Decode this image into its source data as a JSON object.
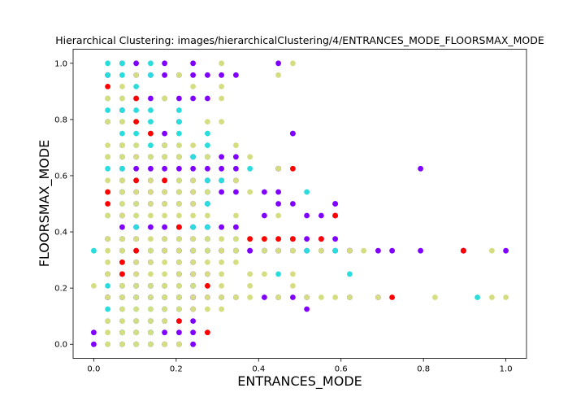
{
  "chart_data": {
    "type": "scatter",
    "title": "Hierarchical Clustering: images/hierarchicalClustering/4/ENTRANCES_MODE_FLOORSMAX_MODE",
    "xlabel": "ENTRANCES_MODE",
    "ylabel": "FLOORSMAX_MODE",
    "xlim": [
      -0.05,
      1.05
    ],
    "ylim": [
      -0.05,
      1.05
    ],
    "xticks": [
      "0.0",
      "0.2",
      "0.4",
      "0.6",
      "0.8",
      "1.0"
    ],
    "yticks": [
      "0.0",
      "0.2",
      "0.4",
      "0.6",
      "0.8",
      "1.0"
    ],
    "grid": false,
    "colors": {
      "purple": "#8000ff",
      "cyan": "#2adddd",
      "khaki": "#d4dd80",
      "red": "#ff0000"
    },
    "series": [
      {
        "color": "purple",
        "x": [
          0,
          0,
          0.069,
          0.103,
          0.138,
          0.172,
          0.207,
          0.241,
          0.241,
          0.276,
          0.31,
          0.345,
          0.379,
          0.414,
          0.448,
          0.483,
          0.517,
          0.552,
          0.586,
          0.621,
          0.69,
          0.724,
          0.793,
          0.897,
          0.897,
          1.0,
          0.172,
          0.207,
          0.241,
          0.276,
          0.31,
          0.345,
          0.379,
          0.414,
          0.448,
          0.483,
          0.517,
          0.552,
          0.586,
          0.621,
          0.069,
          0.103,
          0.138,
          0.172,
          0.207,
          0.241,
          0.276,
          0.31,
          0.345,
          0.414,
          0.448,
          0.483,
          0.517,
          0.552,
          0.586,
          0.414,
          0.448,
          0.586,
          0.448,
          0.483,
          0.586,
          0.069,
          0.103,
          0.138,
          0.172,
          0.207,
          0.241,
          0.276,
          0.069,
          0.103,
          0.138,
          0.172,
          0.207,
          0.241,
          0.276,
          0.31,
          0.345,
          0.069,
          0.103,
          0.138,
          0.172,
          0.207,
          0.241,
          0.276,
          0.31,
          0.345,
          0.069,
          0.103,
          0.138,
          0.172,
          0.207,
          0.241,
          0.276,
          0.31,
          0.345,
          0.448,
          0.793,
          0.069,
          0.103,
          0.138,
          0.172,
          0.207,
          0.241,
          0.276,
          0.31,
          0.345,
          0.172,
          0.483,
          0.069,
          0.172,
          0.034,
          0.207,
          0.069,
          0.103,
          0.138,
          0.172,
          0.207,
          0.241,
          0.276,
          0.034,
          0.448,
          0.069,
          0.103,
          0.172,
          0.241,
          0.069,
          0.103,
          0.138,
          0.207,
          0.241,
          0.069,
          0.103,
          0.207,
          0.241,
          0.069,
          0.103,
          0.172,
          0.207,
          0.241,
          0.207,
          0.241,
          0.172,
          0.207,
          0.241,
          0.517,
          0.034,
          0.069,
          0.103,
          0.138,
          0.172,
          0.207,
          0.241,
          0.276,
          0.103,
          0.138,
          0.172,
          0.207,
          0.241,
          0.069,
          0.103,
          0.138,
          0.172,
          0.207,
          0.241,
          0.069,
          0.103,
          0.138,
          0.172,
          0.207,
          0.241,
          0.103,
          0.138,
          0.207,
          0.241,
          0.276,
          0.034,
          0.069,
          0.138,
          0.241,
          0.034,
          0.069,
          0.103,
          0.172,
          0.207,
          0.241,
          0.276,
          0.034,
          0.103,
          0.138,
          0.172,
          0.207,
          0.241,
          0.276,
          0.31,
          0.345,
          0.034,
          0.069,
          0.103,
          0.138,
          0.172,
          0.207,
          0.241,
          0.31,
          0.345,
          0.414,
          0.448,
          0.483,
          0.517,
          0.621,
          0.69
        ],
        "y": [
          0.042,
          0,
          0.333,
          0.333,
          0.333,
          0.333,
          0.333,
          0.333,
          0.333,
          0.333,
          0.333,
          0.333,
          0.333,
          0.333,
          0.333,
          0.333,
          0.333,
          0.333,
          0.333,
          0.333,
          0.333,
          0.333,
          0.333,
          0.333,
          0.333,
          0.333,
          0.333,
          0.333,
          0.333,
          0.333,
          0.333,
          0.333,
          0.333,
          0.333,
          0.333,
          0.375,
          0.375,
          0.375,
          0.375,
          0.333,
          0.417,
          0.417,
          0.417,
          0.417,
          0.417,
          0.417,
          0.417,
          0.417,
          0.417,
          0.458,
          0.5,
          0.5,
          0.458,
          0.458,
          0.5,
          0.542,
          0.542,
          0.5,
          0.625,
          0.75,
          0.458,
          0.458,
          0.5,
          0.5,
          0.5,
          0.5,
          0.5,
          0.5,
          0.542,
          0.542,
          0.542,
          0.542,
          0.542,
          0.542,
          0.542,
          0.542,
          0.542,
          0.583,
          0.583,
          0.583,
          0.583,
          0.583,
          0.583,
          0.583,
          0.583,
          0.583,
          0.625,
          0.625,
          0.625,
          0.625,
          0.625,
          0.625,
          0.625,
          0.625,
          0.625,
          0.625,
          0.625,
          0.667,
          0.667,
          0.667,
          0.667,
          0.667,
          0.667,
          0.667,
          0.667,
          0.667,
          0.75,
          0.75,
          0.708,
          0.708,
          0.792,
          0.792,
          0.833,
          0.875,
          0.875,
          0.875,
          0.875,
          0.875,
          0.875,
          0.958,
          1.0,
          1.0,
          1.0,
          1.0,
          1.0,
          0.292,
          0.292,
          0.292,
          0.292,
          0.292,
          0.25,
          0.25,
          0.25,
          0.25,
          0.208,
          0.208,
          0.208,
          0.208,
          0.208,
          0.167,
          0.167,
          0.125,
          0.125,
          0.125,
          0.125,
          0.167,
          0.167,
          0.167,
          0.167,
          0.167,
          0.167,
          0.167,
          0.167,
          0.083,
          0.083,
          0.083,
          0.083,
          0.083,
          0.042,
          0.042,
          0.042,
          0.042,
          0.042,
          0.042,
          0,
          0,
          0,
          0,
          0,
          0,
          0.208,
          0.208,
          0.25,
          0.25,
          0.25,
          0.25,
          0.25,
          0.208,
          0.208,
          0.375,
          0.375,
          0.375,
          0.375,
          0.375,
          0.375,
          0.375,
          0.958,
          0.958,
          0.958,
          0.958,
          0.958,
          0.958,
          0.958,
          0.958,
          0.958,
          0.167,
          0.167,
          0.167,
          0.167,
          0.167,
          0.167,
          0.167,
          0.167,
          0.167,
          0.167,
          0.167,
          0.167,
          0.167,
          0.167,
          0.167
        ]
      },
      {
        "color": "cyan",
        "x": [
          0.034,
          0.069,
          0.138,
          0.034,
          0.069,
          0.034,
          0.103,
          0.138,
          0.069,
          0.034,
          0.069,
          0.103,
          0.138,
          0.207,
          0.034,
          0.069,
          0.103,
          0.138,
          0.207,
          0.069,
          0.103,
          0.138,
          0.207,
          0.276,
          0.069,
          0.103,
          0.138,
          0.172,
          0.207,
          0.034,
          0.069,
          0.138,
          0.172,
          0.207,
          0.241,
          0.276,
          0.034,
          0.069,
          0.276,
          0.069,
          0.103,
          0.207,
          0.276,
          0.31,
          0.034,
          0.069,
          0.276,
          0.379,
          0.069,
          0.103,
          0.276,
          0.034,
          0.103,
          0.103,
          0.276,
          0.517,
          0.069,
          0.207,
          0.276,
          0.345,
          0.621,
          0,
          0.069,
          0.103,
          0.138,
          0.241,
          0.276,
          0.345,
          0.414,
          0.448,
          0.517,
          0.586,
          0.931,
          0.034,
          0.069,
          0.103,
          0.138,
          0.172,
          0.207,
          0.241,
          0.276,
          0.069,
          0.103,
          0.138,
          0.172,
          0.207,
          0.034,
          0.069,
          0.103,
          0.138,
          0.172,
          0.207,
          0.034,
          0.069,
          0.103,
          0.138,
          0.069,
          0.138,
          0.034,
          0.069,
          0.103,
          0.138,
          0.069,
          0.103,
          0.138,
          0.069,
          0.241,
          0.276
        ],
        "y": [
          1.0,
          1.0,
          1.0,
          0.958,
          0.958,
          0.875,
          0.917,
          0.958,
          0.875,
          0.833,
          0.833,
          0.833,
          0.833,
          0.833,
          0.792,
          0.792,
          0.792,
          0.792,
          0.792,
          0.75,
          0.75,
          0.75,
          0.75,
          0.75,
          0.708,
          0.708,
          0.708,
          0.708,
          0.708,
          0.667,
          0.667,
          0.667,
          0.667,
          0.667,
          0.667,
          0.667,
          0.625,
          0.625,
          0.708,
          0.583,
          0.583,
          0.583,
          0.583,
          0.583,
          0.542,
          0.542,
          0.542,
          0.625,
          0.5,
          0.5,
          0.5,
          0.458,
          0.458,
          0.417,
          0.417,
          0.542,
          0.375,
          0.375,
          0.375,
          0.375,
          0.25,
          0.333,
          0.333,
          0.333,
          0.333,
          0.333,
          0.333,
          0.333,
          0.333,
          0.25,
          0.333,
          0.333,
          0.167,
          0.208,
          0.208,
          0.208,
          0.208,
          0.208,
          0.208,
          0.208,
          0.208,
          0.167,
          0.167,
          0.167,
          0.167,
          0.167,
          0.125,
          0.125,
          0.125,
          0.125,
          0.125,
          0.125,
          0.083,
          0.083,
          0.083,
          0.083,
          0.042,
          0.042,
          0,
          0,
          0,
          0,
          0.042,
          0.042,
          0.042,
          0.042,
          0.417,
          0.5
        ]
      },
      {
        "color": "khaki",
        "x": [
          0.31,
          0.483,
          0.448,
          0.069,
          0.207,
          0.241,
          0.31,
          0.034,
          0.069,
          0.103,
          0.172,
          0.31,
          0.034,
          0.069,
          0.103,
          0.172,
          0.276,
          0.034,
          0.069,
          0.103,
          0.172,
          0.207,
          0.241,
          0.345,
          0.034,
          0.069,
          0.103,
          0.138,
          0.172,
          0.207,
          0.276,
          0.034,
          0.069,
          0.103,
          0.138,
          0.172,
          0.207,
          0.241,
          0.345,
          0.379,
          0.034,
          0.069,
          0.103,
          0.138,
          0.172,
          0.207,
          0.241,
          0.276,
          0.379,
          0.448,
          0.034,
          0.069,
          0.103,
          0.138,
          0.172,
          0.207,
          0.241,
          0.276,
          0.345,
          0.448,
          0.034,
          0.069,
          0.103,
          0.138,
          0.172,
          0.207,
          0.241,
          0.276,
          0.31,
          0.345,
          0.379,
          0.414,
          0.448,
          0.483,
          0.034,
          0.069,
          0.103,
          0.138,
          0.172,
          0.207,
          0.241,
          0.276,
          0.31,
          0.345,
          0.414,
          0.448,
          0.483,
          0.552,
          0.621,
          0.655,
          0.966,
          0.034,
          0.069,
          0.103,
          0.138,
          0.172,
          0.207,
          0.241,
          0.276,
          0.31,
          0.345,
          0.034,
          0.069,
          0.103,
          0.138,
          0.172,
          0.207,
          0.241,
          0.276,
          0.31,
          0.379,
          0.414,
          0.483,
          0,
          0.069,
          0.103,
          0.138,
          0.172,
          0.207,
          0.241,
          0.276,
          0.31,
          0.379,
          0.483,
          0.034,
          0.069,
          0.103,
          0.138,
          0.172,
          0.207,
          0.241,
          0.276,
          0.31,
          0.345,
          0.379,
          0.448,
          0.517,
          0.552,
          0.586,
          0.621,
          0.69,
          0.828,
          0.966,
          1.0,
          0.069,
          0.103,
          0.138,
          0.172,
          0.207,
          0.241,
          0.276,
          0.31,
          0.034,
          0.069,
          0.103,
          0.138,
          0.172,
          0.207,
          0.034,
          0.069,
          0.103,
          0.138,
          0.034,
          0.069,
          0.103,
          0.138,
          0.172,
          0.207,
          0.034,
          0.069,
          0.103,
          0.138,
          0.172,
          0.207,
          0.241,
          0.069,
          0.31,
          0.103
        ],
        "y": [
          1.0,
          1.0,
          0.958,
          0.917,
          0.958,
          0.917,
          0.917,
          0.875,
          0.875,
          0.875,
          0.875,
          0.792,
          0.792,
          0.792,
          0.792,
          0.875,
          0.792,
          0.708,
          0.708,
          0.708,
          0.708,
          0.708,
          0.708,
          0.708,
          0.667,
          0.667,
          0.667,
          0.667,
          0.667,
          0.667,
          0.667,
          0.583,
          0.583,
          0.583,
          0.583,
          0.583,
          0.583,
          0.583,
          0.583,
          0.667,
          0.542,
          0.542,
          0.542,
          0.542,
          0.542,
          0.542,
          0.542,
          0.542,
          0.542,
          0.625,
          0.458,
          0.458,
          0.458,
          0.458,
          0.458,
          0.458,
          0.458,
          0.458,
          0.458,
          0.458,
          0.375,
          0.375,
          0.375,
          0.375,
          0.375,
          0.375,
          0.375,
          0.375,
          0.375,
          0.375,
          0.375,
          0.375,
          0.375,
          0.375,
          0.333,
          0.333,
          0.333,
          0.333,
          0.333,
          0.333,
          0.333,
          0.333,
          0.333,
          0.333,
          0.333,
          0.333,
          0.333,
          0.333,
          0.333,
          0.333,
          0.333,
          0.292,
          0.292,
          0.292,
          0.292,
          0.292,
          0.292,
          0.292,
          0.292,
          0.292,
          0.292,
          0.25,
          0.25,
          0.25,
          0.25,
          0.25,
          0.25,
          0.25,
          0.25,
          0.25,
          0.25,
          0.25,
          0.25,
          0.208,
          0.208,
          0.208,
          0.208,
          0.208,
          0.208,
          0.208,
          0.208,
          0.208,
          0.208,
          0.208,
          0.167,
          0.167,
          0.167,
          0.167,
          0.167,
          0.167,
          0.167,
          0.167,
          0.167,
          0.167,
          0.167,
          0.167,
          0.167,
          0.167,
          0.167,
          0.167,
          0.167,
          0.167,
          0.167,
          0.167,
          0.125,
          0.125,
          0.125,
          0.125,
          0.125,
          0.125,
          0.125,
          0.125,
          0.083,
          0.083,
          0.083,
          0.083,
          0.083,
          0.083,
          0.042,
          0.042,
          0.042,
          0.042,
          0,
          0,
          0,
          0,
          0,
          0,
          0.5,
          0.5,
          0.5,
          0.5,
          0.5,
          0.5,
          0.5,
          0.708,
          0.875,
          0.958
        ]
      },
      {
        "color": "red",
        "x": [
          0.034,
          0.103,
          0.103,
          0.138,
          0.034,
          0.103,
          0.172,
          0.483,
          0.034,
          0.586,
          0.207,
          0.379,
          0.414,
          0.448,
          0.483,
          0.552,
          0.897,
          0.103,
          0.276,
          0.724,
          0.069,
          0.069,
          0.207,
          0.276
        ],
        "y": [
          0.917,
          0.875,
          0.792,
          0.75,
          0.542,
          0.583,
          0.583,
          0.625,
          0.5,
          0.458,
          0.417,
          0.375,
          0.375,
          0.375,
          0.375,
          0.375,
          0.333,
          0.333,
          0.208,
          0.167,
          0.292,
          0.25,
          0.083,
          0.042
        ]
      }
    ]
  }
}
